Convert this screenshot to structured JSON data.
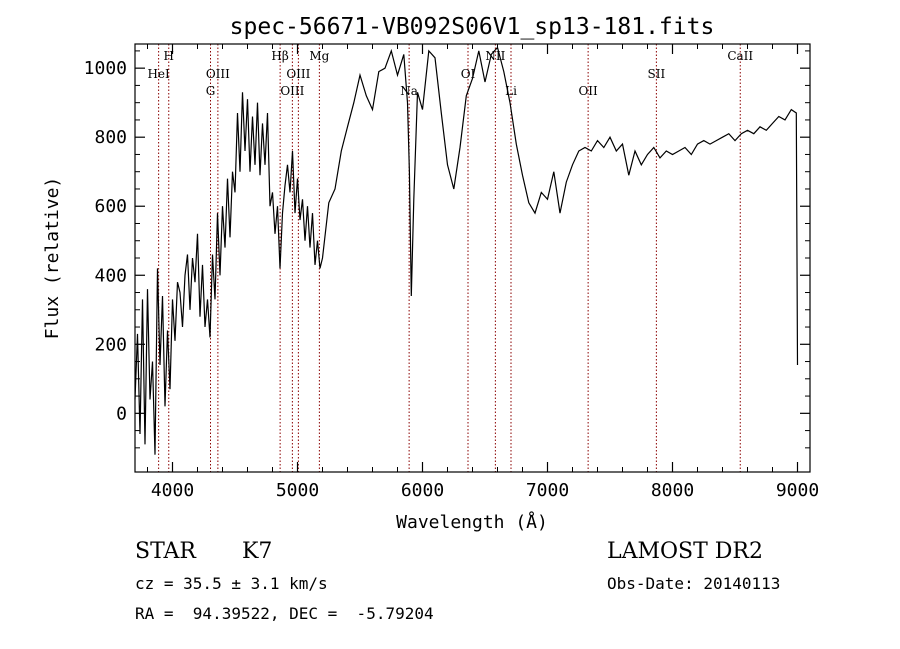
{
  "chart_data": {
    "type": "line",
    "title": "spec-56671-VB092S06V1_sp13-181.fits",
    "xlabel": "Wavelength (Å)",
    "ylabel": "Flux (relative)",
    "xlim": [
      3700,
      9100
    ],
    "ylim": [
      -170,
      1070
    ],
    "xticks": [
      4000,
      5000,
      6000,
      7000,
      8000,
      9000
    ],
    "yticks": [
      0,
      200,
      400,
      600,
      800,
      1000
    ],
    "grid": false,
    "line_color": "#8b0000",
    "spectrum_color": "#000000",
    "series": [
      {
        "x": [
          3700,
          3720,
          3740,
          3760,
          3780,
          3800,
          3820,
          3840,
          3860,
          3880,
          3900,
          3920,
          3940,
          3960,
          3980,
          4000,
          4020,
          4040,
          4060,
          4080,
          4100,
          4120,
          4140,
          4160,
          4180,
          4200,
          4220,
          4240,
          4260,
          4280,
          4300,
          4320,
          4340,
          4360,
          4380,
          4400,
          4420,
          4440,
          4460,
          4480,
          4500,
          4520,
          4540,
          4560,
          4580,
          4600,
          4620,
          4640,
          4660,
          4680,
          4700,
          4720,
          4740,
          4760,
          4780,
          4800,
          4820,
          4840,
          4860,
          4880,
          4900,
          4920,
          4940,
          4960,
          4980,
          5000,
          5020,
          5040,
          5060,
          5080,
          5100,
          5120,
          5140,
          5160,
          5180,
          5200,
          5250,
          5300,
          5350,
          5400,
          5450,
          5500,
          5550,
          5600,
          5650,
          5700,
          5750,
          5800,
          5850,
          5880,
          5895,
          5910,
          5930,
          5960,
          6000,
          6050,
          6100,
          6150,
          6200,
          6250,
          6300,
          6350,
          6400,
          6450,
          6500,
          6550,
          6600,
          6650,
          6700,
          6750,
          6800,
          6850,
          6900,
          6950,
          7000,
          7050,
          7100,
          7150,
          7200,
          7250,
          7300,
          7350,
          7400,
          7450,
          7500,
          7550,
          7600,
          7650,
          7700,
          7750,
          7800,
          7850,
          7900,
          7950,
          8000,
          8050,
          8100,
          8150,
          8200,
          8250,
          8300,
          8350,
          8400,
          8450,
          8500,
          8550,
          8600,
          8650,
          8700,
          8750,
          8800,
          8850,
          8900,
          8950,
          8990,
          9000
        ],
        "values": [
          40,
          230,
          -60,
          330,
          -90,
          360,
          40,
          150,
          -120,
          420,
          140,
          340,
          20,
          240,
          70,
          330,
          210,
          380,
          350,
          250,
          400,
          460,
          300,
          450,
          380,
          520,
          280,
          430,
          250,
          330,
          220,
          460,
          330,
          580,
          400,
          600,
          480,
          680,
          510,
          700,
          640,
          870,
          700,
          930,
          760,
          910,
          700,
          860,
          720,
          900,
          690,
          840,
          720,
          870,
          600,
          640,
          520,
          600,
          420,
          580,
          660,
          720,
          640,
          760,
          580,
          680,
          560,
          620,
          500,
          600,
          480,
          580,
          430,
          500,
          420,
          450,
          610,
          650,
          760,
          830,
          900,
          980,
          920,
          880,
          990,
          1000,
          1050,
          980,
          1040,
          900,
          700,
          340,
          620,
          930,
          880,
          1050,
          1030,
          870,
          720,
          650,
          770,
          920,
          970,
          1050,
          960,
          1040,
          1060,
          990,
          900,
          780,
          690,
          610,
          580,
          640,
          620,
          700,
          580,
          670,
          720,
          760,
          770,
          760,
          790,
          770,
          800,
          760,
          780,
          690,
          760,
          720,
          750,
          770,
          740,
          760,
          750,
          760,
          770,
          750,
          780,
          790,
          780,
          790,
          800,
          810,
          790,
          810,
          820,
          810,
          830,
          820,
          840,
          860,
          850,
          880,
          870,
          140
        ]
      }
    ],
    "spectral_lines": [
      {
        "wavelength": 3889,
        "label": "HeI",
        "row": 2
      },
      {
        "wavelength": 3970,
        "label": "H",
        "row": 1
      },
      {
        "wavelength": 4304,
        "label": "G",
        "row": 3
      },
      {
        "wavelength": 4363,
        "label": "OIII",
        "row": 2
      },
      {
        "wavelength": 4861,
        "label": "Hβ",
        "row": 1
      },
      {
        "wavelength": 4959,
        "label": "OIII",
        "row": 3
      },
      {
        "wavelength": 5007,
        "label": "OIII",
        "row": 2
      },
      {
        "wavelength": 5175,
        "label": "Mg",
        "row": 1
      },
      {
        "wavelength": 5893,
        "label": "Na",
        "row": 3
      },
      {
        "wavelength": 6364,
        "label": "OI",
        "row": 2
      },
      {
        "wavelength": 6583,
        "label": "NII",
        "row": 1
      },
      {
        "wavelength": 6708,
        "label": "Li",
        "row": 3
      },
      {
        "wavelength": 7325,
        "label": "OII",
        "row": 3
      },
      {
        "wavelength": 7871,
        "label": "SII",
        "row": 2
      },
      {
        "wavelength": 8542,
        "label": "CaII",
        "row": 1
      }
    ]
  },
  "info": {
    "class": "STAR",
    "subclass": "K7",
    "survey": "LAMOST DR2",
    "redshift": "cz = 35.5 ± 3.1 km/s",
    "obs_date": "Obs-Date: 20140113",
    "coords": "RA =  94.39522, DEC =  -5.79204"
  }
}
